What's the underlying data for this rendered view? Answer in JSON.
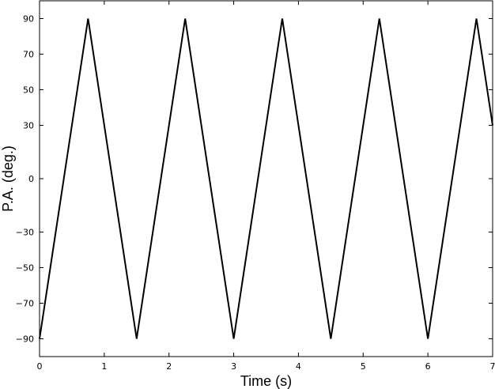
{
  "chart_data": {
    "type": "line",
    "title": "",
    "xlabel": "Time (s)",
    "ylabel": "P.A. (deg.)",
    "xlim": [
      0,
      7
    ],
    "ylim": [
      -100,
      100
    ],
    "xticks": [
      0,
      1,
      2,
      3,
      4,
      5,
      6,
      7
    ],
    "yticks": [
      -90,
      -70,
      -50,
      -30,
      0,
      30,
      50,
      70,
      90
    ],
    "grid": false,
    "legend": "none",
    "series": [
      {
        "color": "#000000",
        "x": [
          0,
          0.75,
          1.5,
          2.25,
          3.0,
          3.75,
          4.5,
          5.25,
          6.0,
          6.75,
          7.0
        ],
        "y": [
          -90,
          90,
          -90,
          90,
          -90,
          90,
          -90,
          90,
          -90,
          90,
          30
        ]
      }
    ]
  }
}
